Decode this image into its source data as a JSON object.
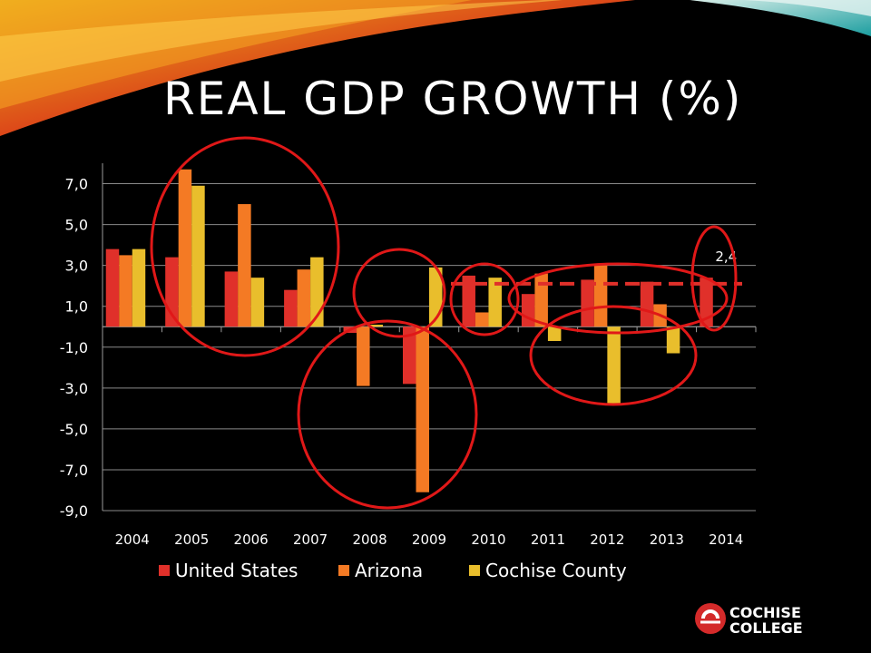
{
  "slide": {
    "title": "REAL GDP GROWTH (%)"
  },
  "chart_data": {
    "type": "bar",
    "categories": [
      "2004",
      "2005",
      "2006",
      "2007",
      "2008",
      "2009",
      "2010",
      "2011",
      "2012",
      "2013",
      "2014"
    ],
    "series": [
      {
        "name": "United States",
        "color": "#e0302a",
        "values": [
          3.8,
          3.4,
          2.7,
          1.8,
          -0.3,
          -2.8,
          2.5,
          1.6,
          2.3,
          2.2,
          2.4
        ]
      },
      {
        "name": "Arizona",
        "color": "#f47a24",
        "values": [
          3.5,
          7.7,
          6.0,
          2.8,
          -2.9,
          -8.1,
          0.7,
          2.6,
          3.0,
          1.1,
          null
        ]
      },
      {
        "name": "Cochise County",
        "color": "#e9be2c",
        "values": [
          3.8,
          6.9,
          2.4,
          3.4,
          0.1,
          2.9,
          2.4,
          -0.7,
          -3.8,
          -1.3,
          null
        ]
      }
    ],
    "yticks": [
      "7,0",
      "5,0",
      "3,0",
      "1,0",
      "-1,0",
      "-3,0",
      "-5,0",
      "-7,0",
      "-9,0"
    ],
    "ylim": [
      -9,
      8
    ],
    "grid": true,
    "legend": "bottom",
    "annotation": {
      "text": "2,4",
      "category": "2014"
    },
    "reference_line": {
      "value": 2.1,
      "style": "dashed",
      "color": "#e0302a"
    }
  },
  "logo": {
    "line1": "COCHISE",
    "line2": "COLLEGE"
  }
}
